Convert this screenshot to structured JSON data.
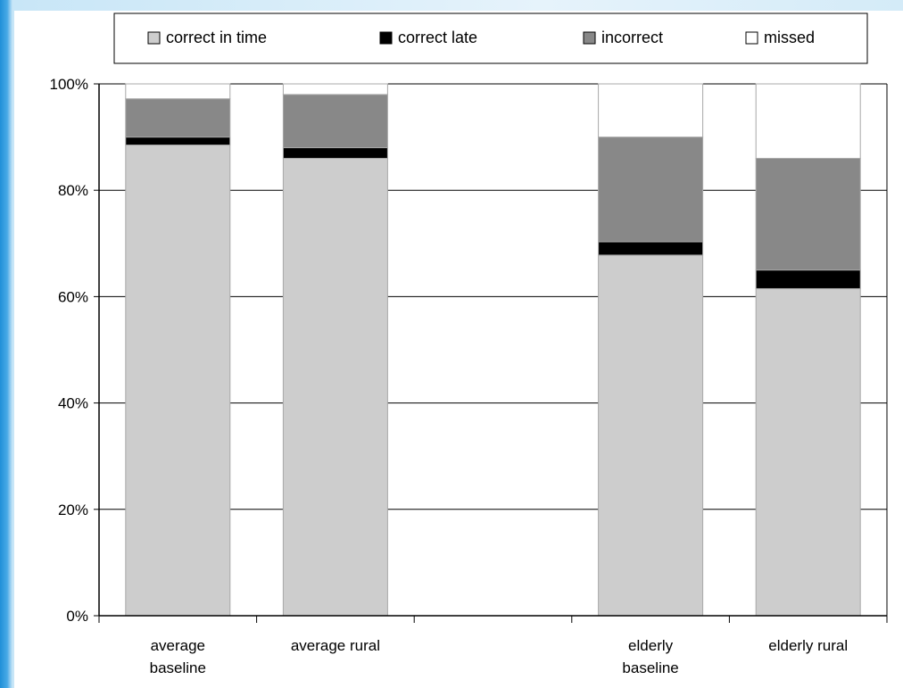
{
  "colors": {
    "correct_in_time": "#cdcdcd",
    "correct_late": "#000000",
    "incorrect": "#888888",
    "missed": "#ffffff",
    "bar_edge": "#a8a8a8",
    "gridline": "#000000"
  },
  "chart_data": {
    "type": "bar",
    "stacked": true,
    "title": "",
    "xlabel": "",
    "ylabel": "",
    "ylim": [
      0,
      100
    ],
    "y_tick_format": "percent",
    "y_ticks": [
      0,
      20,
      40,
      60,
      80,
      100
    ],
    "y_tick_labels": [
      "0%",
      "20%",
      "40%",
      "60%",
      "80%",
      "100%"
    ],
    "grid": "horizontal",
    "legend_position": "top",
    "slots": 5,
    "categories": [
      {
        "lines": [
          "average",
          "baseline"
        ],
        "slot": 0
      },
      {
        "lines": [
          "average rural"
        ],
        "slot": 1
      },
      {
        "lines": [
          "elderly",
          "baseline"
        ],
        "slot": 3
      },
      {
        "lines": [
          "elderly rural"
        ],
        "slot": 4
      }
    ],
    "series": [
      {
        "name": "correct in time",
        "color_key": "correct_in_time",
        "values": [
          88.5,
          86,
          67.8,
          61.5
        ]
      },
      {
        "name": "correct late",
        "color_key": "correct_late",
        "values": [
          1.5,
          2,
          2.5,
          3.5
        ]
      },
      {
        "name": "incorrect",
        "color_key": "incorrect",
        "values": [
          7.2,
          10,
          19.7,
          21
        ]
      },
      {
        "name": "missed",
        "color_key": "missed",
        "values": [
          2.8,
          2,
          10,
          14
        ]
      }
    ]
  }
}
